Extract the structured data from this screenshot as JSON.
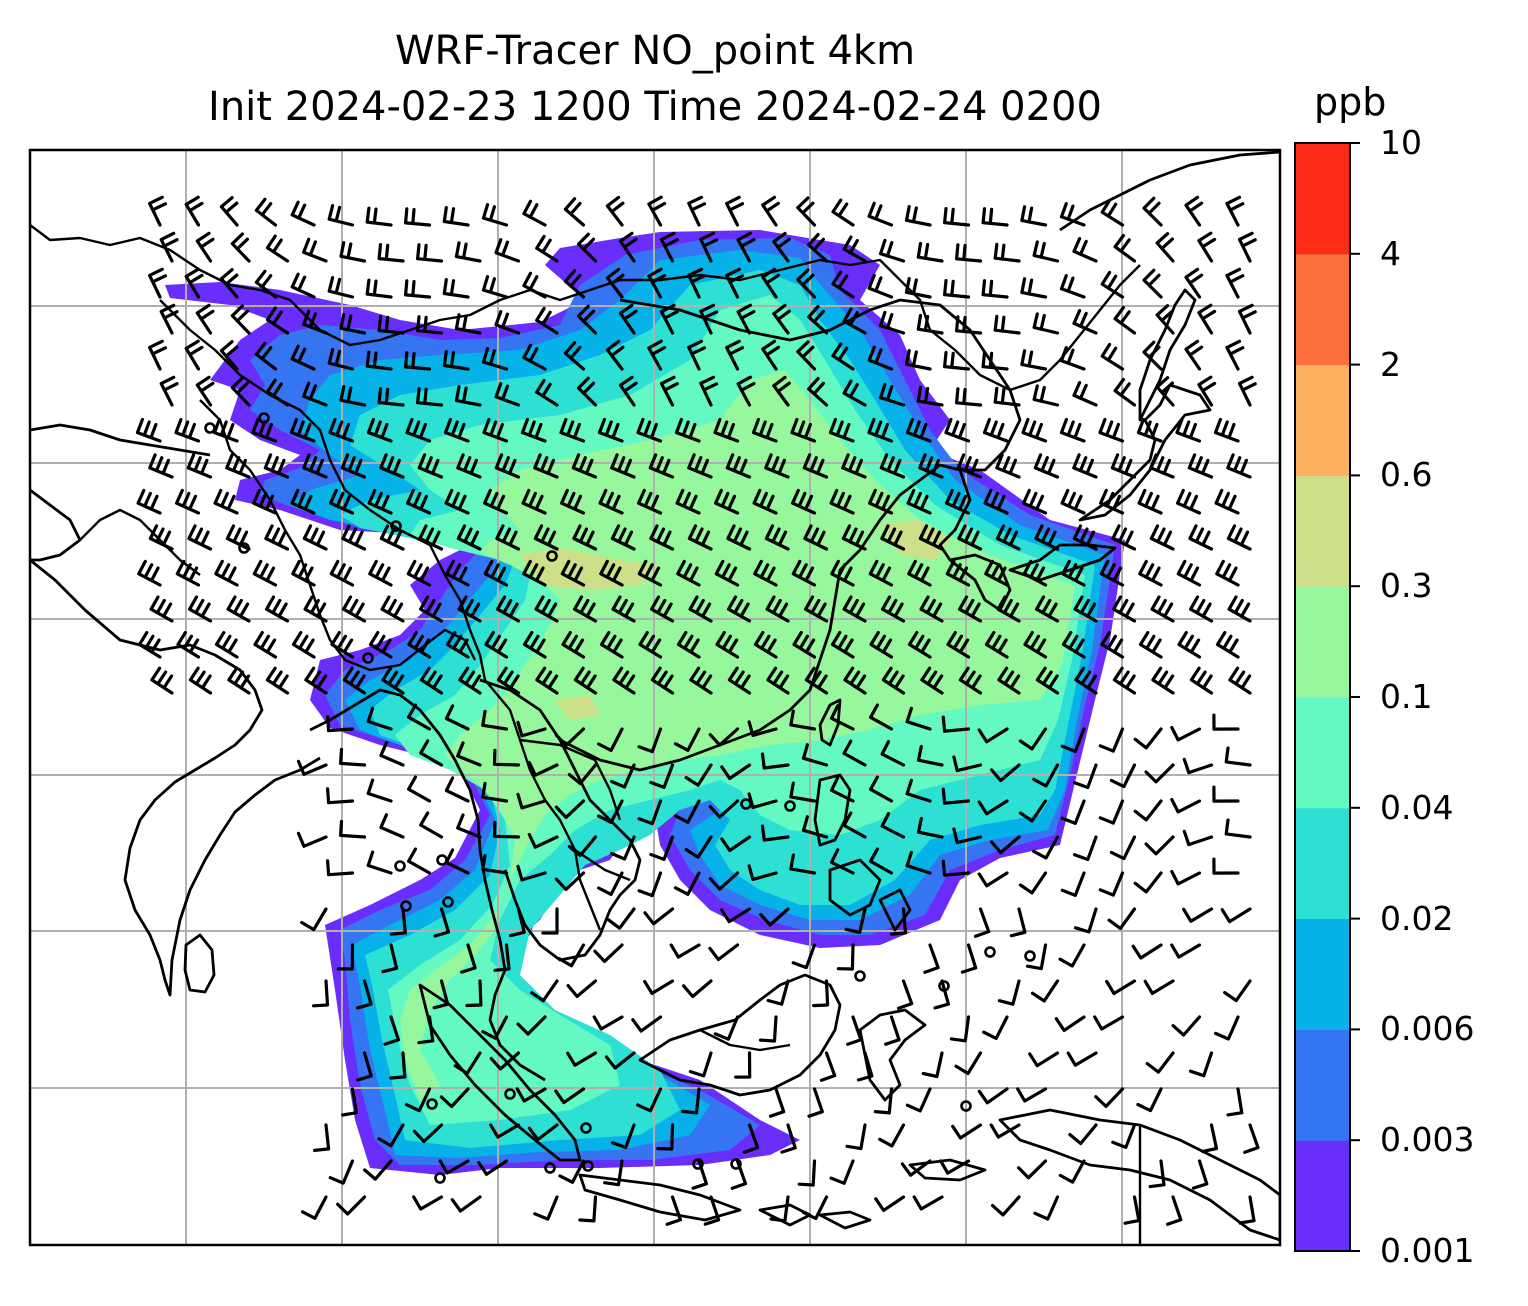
{
  "title": {
    "line1": "WRF-Tracer NO_point 4km",
    "line2": "Init 2024-02-23 1200 Time 2024-02-24 0200"
  },
  "colorbar": {
    "unit": "ppb",
    "levels": [
      "0.001",
      "0.003",
      "0.006",
      "0.02",
      "0.04",
      "0.1",
      "0.3",
      "0.6",
      "2",
      "4",
      "10"
    ],
    "colors": [
      "#6a2efc",
      "#3575f2",
      "#06b2e8",
      "#2ee0d4",
      "#64f9c2",
      "#97f79c",
      "#cddf88",
      "#fcb060",
      "#fe703b",
      "#fe2c17"
    ]
  },
  "map": {
    "gridlines": true,
    "field": "NO_point tracer concentration",
    "overlays": [
      "coastlines",
      "country borders",
      "wind barbs",
      "calm wind circles"
    ]
  }
}
